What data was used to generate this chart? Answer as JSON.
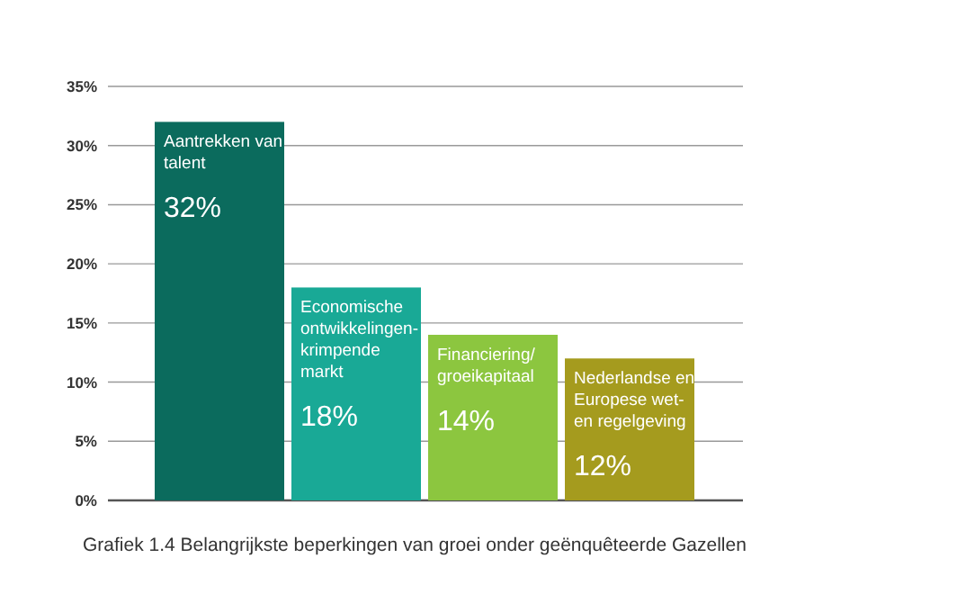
{
  "chart_data": {
    "type": "bar",
    "categories": [
      "Aantrekken van talent",
      "Economische ontwikkelingen-krimpende markt",
      "Financiering/groeikapitaal",
      "Nederlandse en Europese wet- en regelgeving"
    ],
    "values": [
      32,
      18,
      14,
      12
    ],
    "colors": [
      "#0b6b5d",
      "#19a996",
      "#8cc63f",
      "#a59b1e"
    ],
    "value_labels": [
      "32%",
      "18%",
      "14%",
      "12%"
    ],
    "ylim": [
      0,
      35
    ],
    "yticks": [
      {
        "value": 0,
        "label": "0%"
      },
      {
        "value": 5,
        "label": "5%"
      },
      {
        "value": 10,
        "label": "10%"
      },
      {
        "value": 15,
        "label": "15%"
      },
      {
        "value": 20,
        "label": "20%"
      },
      {
        "value": 25,
        "label": "25%"
      },
      {
        "value": 30,
        "label": "30%"
      },
      {
        "value": 35,
        "label": "35%"
      }
    ],
    "grid": "y",
    "annotations": [
      "Grafiek 1.4 Belangrijkste beperkingen van groei onder geënquêteerde Gazellen"
    ]
  }
}
